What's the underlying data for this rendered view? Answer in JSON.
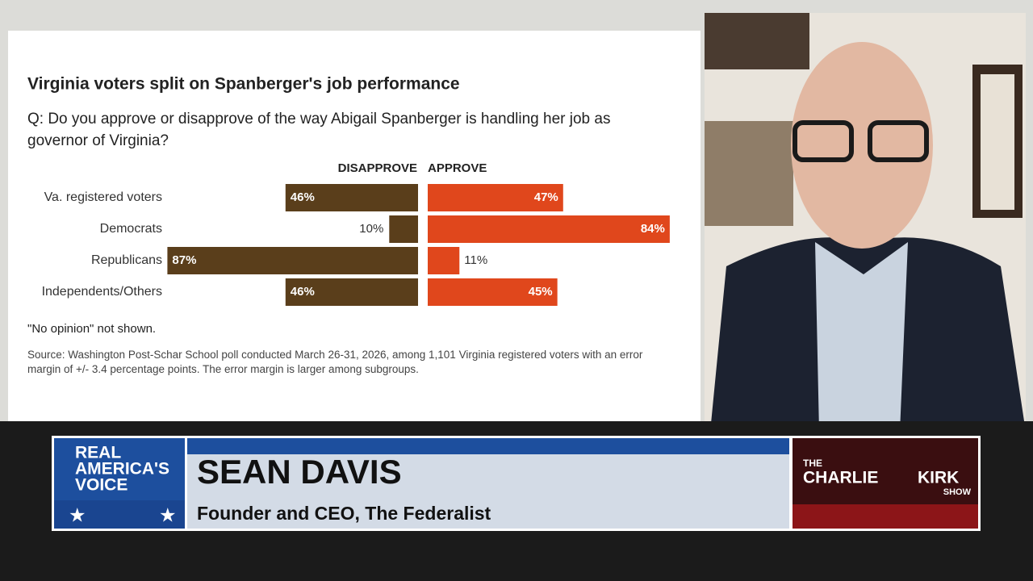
{
  "chart_data": {
    "type": "diverging-bar",
    "title": "Virginia voters split on Spanberger's job performance",
    "subtitle": "Q: Do you approve or disapprove of the way Abigail Spanberger is handling her job as governor of Virginia?",
    "categories": [
      "Va. registered voters",
      "Democrats",
      "Republicans",
      "Independents/Others"
    ],
    "series": [
      {
        "name": "DISAPPROVE",
        "color": "#5a3e1b",
        "values": [
          46,
          10,
          87,
          46
        ],
        "value_labels": [
          "46%",
          "10%",
          "87%",
          "46%"
        ]
      },
      {
        "name": "APPROVE",
        "color": "#e0471c",
        "values": [
          47,
          84,
          11,
          45
        ],
        "value_labels": [
          "47%",
          "84%",
          "11%",
          "45%"
        ]
      }
    ],
    "note": "\"No opinion\" not shown.",
    "source": "Source: Washington Post-Schar School poll conducted March 26-31, 2026, among 1,101 Virginia registered voters with an error margin of +/- 3.4 percentage points. The error margin is larger among subgroups."
  },
  "lower_third": {
    "name": "SEAN DAVIS",
    "role": "Founder and CEO, The Federalist"
  },
  "network_logo": {
    "lines": [
      "REAL",
      "AMERICA'S",
      "VOICE"
    ]
  },
  "show_logo": {
    "lines": [
      "THE",
      "CHARLIE",
      "KIRK",
      "SHOW"
    ]
  }
}
